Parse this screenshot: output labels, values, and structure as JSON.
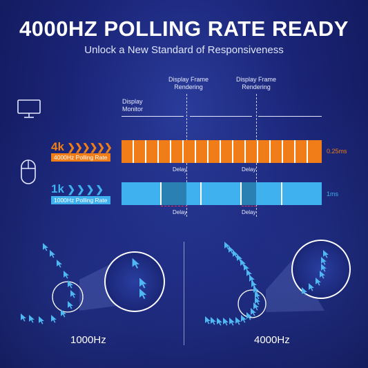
{
  "header": {
    "title": "4000HZ POLLING RATE READY",
    "subtitle": "Unlock a New Standard of Responsiveness"
  },
  "diagram": {
    "display_monitor_label_1": "Display",
    "display_monitor_label_2": "Monitor",
    "frame_label_1a": "Display Frame",
    "frame_label_1b": "Rendering",
    "frame_label_2a": "Display Frame",
    "frame_label_2b": "Rendering",
    "rate_4k": {
      "short": "4k",
      "chevrons": "❯❯❯❯❯❯",
      "caption": "4000Hz Polling Rate",
      "interval": "0.25ms",
      "color": "#f07d18"
    },
    "rate_1k": {
      "short": "1k",
      "chevrons": "❯ ❯ ❯ ❯",
      "caption": "1000Hz Polling Rate",
      "interval": "1ms",
      "color": "#3fb1ee"
    },
    "delay_label": "Delay"
  },
  "comparison": {
    "left_label": "1000Hz",
    "right_label": "4000Hz"
  },
  "icons": {
    "monitor": "monitor-icon",
    "mouse": "mouse-icon",
    "cursor": "cursor-arrow-icon"
  }
}
